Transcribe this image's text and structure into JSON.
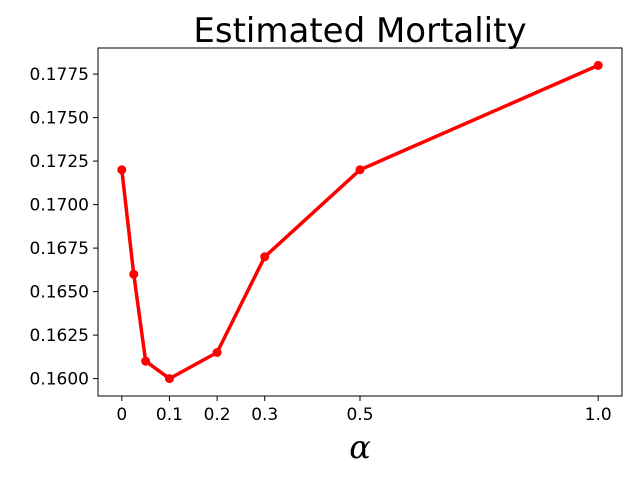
{
  "chart_data": {
    "type": "line",
    "title": "Estimated Mortality",
    "xlabel": "α",
    "ylabel": "",
    "x": [
      0,
      0.025,
      0.05,
      0.1,
      0.2,
      0.3,
      0.5,
      1.0
    ],
    "series": [
      {
        "values": [
          0.172,
          0.166,
          0.161,
          0.16,
          0.1615,
          0.167,
          0.172,
          0.178
        ],
        "color": "#ff0000",
        "marker": "circle"
      }
    ],
    "xlim": [
      -0.05,
      1.05
    ],
    "ylim": [
      0.159,
      0.179
    ],
    "xticks": [
      0,
      0.1,
      0.2,
      0.3,
      0.5,
      1.0
    ],
    "xtick_labels": [
      "0",
      "0.1",
      "0.2",
      "0.3",
      "0.5",
      "1.0"
    ],
    "yticks": [
      0.16,
      0.1625,
      0.165,
      0.1675,
      0.17,
      0.1725,
      0.175,
      0.1775
    ],
    "ytick_labels": [
      "0.1600",
      "0.1625",
      "0.1650",
      "0.1675",
      "0.1700",
      "0.1725",
      "0.1750",
      "0.1775"
    ],
    "grid": false,
    "legend": false
  }
}
